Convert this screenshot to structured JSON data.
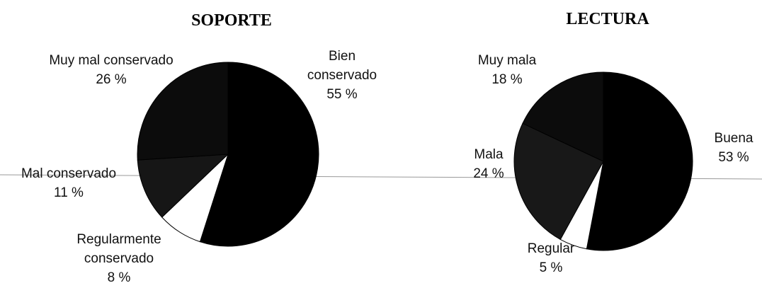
{
  "chart_data": [
    {
      "type": "pie",
      "title": "SOPORTE",
      "categories": [
        "Bien conservado",
        "Regularmente conservado",
        "Mal conservado",
        "Muy mal conservado"
      ],
      "values": [
        55,
        8,
        11,
        26
      ],
      "value_labels": [
        "55 %",
        "8 %",
        "11 %",
        "26 %"
      ],
      "colors": [
        "#000000",
        "#ffffff",
        "#161616",
        "#0c0c0c"
      ]
    },
    {
      "type": "pie",
      "title": "LECTURA",
      "categories": [
        "Buena",
        "Regular",
        "Mala",
        "Muy mala"
      ],
      "values": [
        53,
        5,
        24,
        18
      ],
      "value_labels": [
        "53 %",
        "5 %",
        "24 %",
        "18 %"
      ],
      "colors": [
        "#000000",
        "#ffffff",
        "#181818",
        "#0c0c0c"
      ]
    }
  ]
}
